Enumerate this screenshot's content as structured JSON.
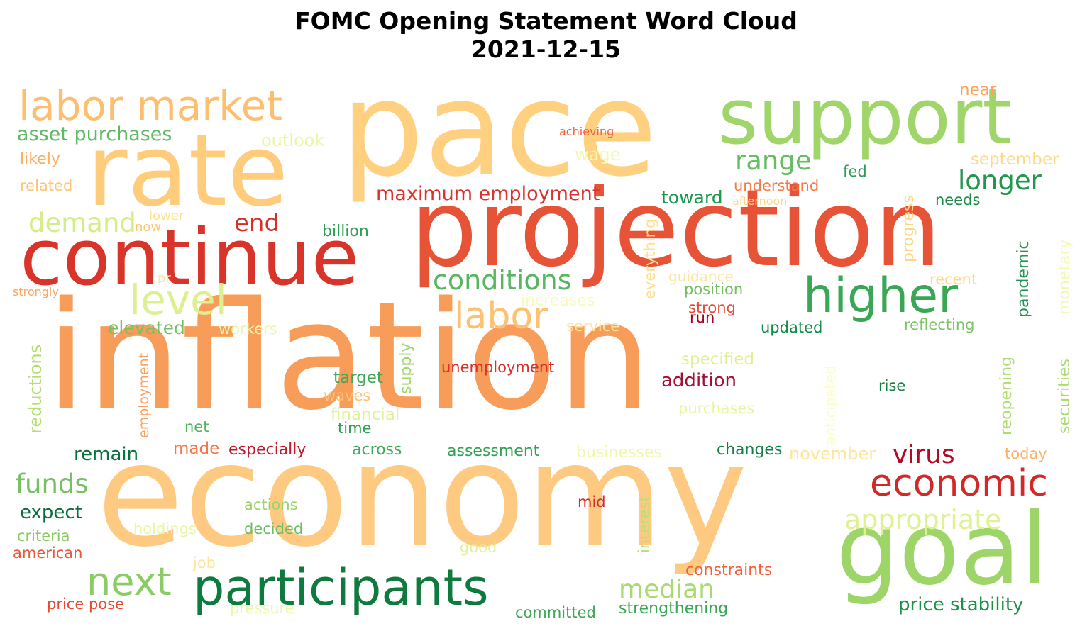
{
  "title": "FOMC Opening Statement Word Cloud",
  "subtitle": "2021-12-15",
  "words": [
    {
      "text": "inflation",
      "color": "#f89d59"
    },
    {
      "text": "economy",
      "color": "#fec980"
    },
    {
      "text": "pace",
      "color": "#fed07f"
    },
    {
      "text": "projection",
      "color": "#e75337"
    },
    {
      "text": "rate",
      "color": "#fecc7b"
    },
    {
      "text": "continue",
      "color": "#d93429"
    },
    {
      "text": "support",
      "color": "#a0d669"
    },
    {
      "text": "goal",
      "color": "#9ed569"
    },
    {
      "text": "participants",
      "color": "#0f7a3e"
    },
    {
      "text": "labor market",
      "color": "#fdbe70"
    },
    {
      "text": "higher",
      "color": "#3aa757"
    },
    {
      "text": "economic",
      "color": "#d02927"
    },
    {
      "text": "next",
      "color": "#8bcb66"
    },
    {
      "text": "level",
      "color": "#dcf08f"
    },
    {
      "text": "labor",
      "color": "#fdc171"
    },
    {
      "text": "conditions",
      "color": "#57b65f"
    },
    {
      "text": "appropriate",
      "color": "#dff293"
    },
    {
      "text": "demand",
      "color": "#d4ed88"
    },
    {
      "text": "funds",
      "color": "#77c164"
    },
    {
      "text": "median",
      "color": "#a9da6d"
    },
    {
      "text": "virus",
      "color": "#b10b26"
    },
    {
      "text": "longer",
      "color": "#23964f"
    },
    {
      "text": "range",
      "color": "#66bd63"
    },
    {
      "text": "end",
      "color": "#d52f28"
    },
    {
      "text": "maximum employment",
      "color": "#d7322b"
    },
    {
      "text": "asset purchases",
      "color": "#5fb962"
    },
    {
      "text": "price stability",
      "color": "#1c8f49"
    },
    {
      "text": "strengthening",
      "color": "#3aa757"
    },
    {
      "text": "toward",
      "color": "#1a9850"
    },
    {
      "text": "addition",
      "color": "#a50f34"
    },
    {
      "text": "elevated",
      "color": "#76c064"
    },
    {
      "text": "expect",
      "color": "#087040"
    },
    {
      "text": "remain",
      "color": "#0a713f"
    },
    {
      "text": "unemployment",
      "color": "#d7312b"
    },
    {
      "text": "updated",
      "color": "#138a48"
    },
    {
      "text": "billion",
      "color": "#2e9e54"
    },
    {
      "text": "target",
      "color": "#3fa85a"
    },
    {
      "text": "especially",
      "color": "#c01a2b"
    },
    {
      "text": "constraints",
      "color": "#ee613c"
    },
    {
      "text": "outlook",
      "color": "#e9f6a4"
    },
    {
      "text": "wage",
      "color": "#f2f9ac"
    },
    {
      "text": "september",
      "color": "#fed98a"
    },
    {
      "text": "near",
      "color": "#fca45e"
    },
    {
      "text": "fed",
      "color": "#2b9b53"
    },
    {
      "text": "needs",
      "color": "#1b8c4a"
    },
    {
      "text": "understand",
      "color": "#f67a49"
    },
    {
      "text": "afternoon",
      "color": "#fed686"
    },
    {
      "text": "achieving",
      "color": "#f0623e"
    },
    {
      "text": "likely",
      "color": "#fcad62"
    },
    {
      "text": "related",
      "color": "#fdc474"
    },
    {
      "text": "lower",
      "color": "#fee08e"
    },
    {
      "text": "now",
      "color": "#fdc575"
    },
    {
      "text": "strongly",
      "color": "#fca55f"
    },
    {
      "text": "pr",
      "color": "#fee49b"
    },
    {
      "text": "guidance",
      "color": "#fee59b"
    },
    {
      "text": "position",
      "color": "#74bf63"
    },
    {
      "text": "strong",
      "color": "#e34a33"
    },
    {
      "text": "run",
      "color": "#a50026"
    },
    {
      "text": "increases",
      "color": "#f8fbb8"
    },
    {
      "text": "recent",
      "color": "#fed98a"
    },
    {
      "text": "reflecting",
      "color": "#7cc464"
    },
    {
      "text": "workers",
      "color": "#ecf7a6"
    },
    {
      "text": "service",
      "color": "#fee49b"
    },
    {
      "text": "specified",
      "color": "#dff293"
    },
    {
      "text": "rise",
      "color": "#187f45"
    },
    {
      "text": "purchases",
      "color": "#e8f59e"
    },
    {
      "text": "waves",
      "color": "#fdc272"
    },
    {
      "text": "financial",
      "color": "#dff294"
    },
    {
      "text": "time",
      "color": "#2f9f55"
    },
    {
      "text": "net",
      "color": "#53b360"
    },
    {
      "text": "made",
      "color": "#f57748"
    },
    {
      "text": "across",
      "color": "#41aa5a"
    },
    {
      "text": "assessment",
      "color": "#33a055"
    },
    {
      "text": "businesses",
      "color": "#f0f8ab"
    },
    {
      "text": "changes",
      "color": "#127f46"
    },
    {
      "text": "november",
      "color": "#fee59c"
    },
    {
      "text": "today",
      "color": "#fcb266"
    },
    {
      "text": "actions",
      "color": "#9dd469"
    },
    {
      "text": "decided",
      "color": "#6dbd63"
    },
    {
      "text": "holdings",
      "color": "#eaf6a3"
    },
    {
      "text": "criteria",
      "color": "#88ca66"
    },
    {
      "text": "american",
      "color": "#ea5739"
    },
    {
      "text": "mid",
      "color": "#d0302a"
    },
    {
      "text": "good",
      "color": "#dff293"
    },
    {
      "text": "job",
      "color": "#fee59b"
    },
    {
      "text": "price pose",
      "color": "#e44d35"
    },
    {
      "text": "pressure",
      "color": "#eef7a6"
    },
    {
      "text": "committed",
      "color": "#3ea756"
    },
    {
      "text": "progress",
      "color": "#fdd785"
    },
    {
      "text": "pandemic",
      "color": "#249553"
    },
    {
      "text": "monetary",
      "color": "#f3f9b2"
    },
    {
      "text": "everything",
      "color": "#fee08e"
    },
    {
      "text": "reductions",
      "color": "#b2df73"
    },
    {
      "text": "employment",
      "color": "#fba160"
    },
    {
      "text": "supply",
      "color": "#9fd569"
    },
    {
      "text": "anticipated",
      "color": "#fbfdc7"
    },
    {
      "text": "reopening",
      "color": "#aedd71"
    },
    {
      "text": "securities",
      "color": "#a8db6c"
    },
    {
      "text": "interest",
      "color": "#b7e078"
    }
  ]
}
